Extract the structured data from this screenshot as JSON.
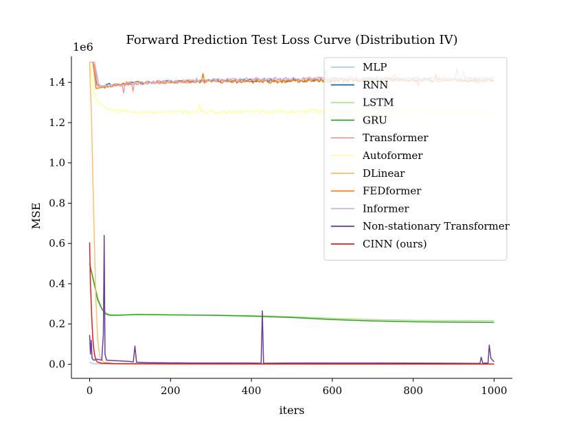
{
  "chart_data": {
    "type": "line",
    "title": "Forward Prediction Test Loss Curve (Distribution IV)",
    "xlabel": "iters",
    "ylabel": "MSE",
    "y_scale_label": "1e6",
    "xlim": [
      -45,
      1045
    ],
    "ylim": [
      -0.07,
      1.53
    ],
    "xticks": [
      0,
      200,
      400,
      600,
      800,
      1000
    ],
    "xtick_labels": [
      "0",
      "200",
      "400",
      "600",
      "800",
      "1000"
    ],
    "yticks": [
      0.0,
      0.2,
      0.4,
      0.6,
      0.8,
      1.0,
      1.2,
      1.4
    ],
    "ytick_labels": [
      "0.0",
      "0.2",
      "0.4",
      "0.6",
      "0.8",
      "1.0",
      "1.2",
      "1.4"
    ],
    "legend_position": "top-right",
    "series": [
      {
        "name": "MLP",
        "color": "#a6cee3",
        "points": [
          [
            0,
            0.012
          ],
          [
            4,
            0.005
          ],
          [
            8,
            0.003
          ],
          [
            20,
            0.002
          ],
          [
            60,
            0.001
          ],
          [
            200,
            0.001
          ],
          [
            600,
            0.001
          ],
          [
            1000,
            0.001
          ]
        ]
      },
      {
        "name": "RNN",
        "color": "#1f78b4",
        "points": [
          [
            0,
            1.5
          ],
          [
            8,
            1.5
          ],
          [
            13,
            1.47
          ],
          [
            18,
            1.39
          ],
          [
            30,
            1.38
          ],
          [
            60,
            1.39
          ],
          [
            150,
            1.4
          ],
          [
            300,
            1.41
          ],
          [
            500,
            1.41
          ],
          [
            700,
            1.415
          ],
          [
            1000,
            1.41
          ]
        ]
      },
      {
        "name": "LSTM",
        "color": "#b2df8a",
        "points": [
          [
            0,
            0.5
          ],
          [
            10,
            0.42
          ],
          [
            20,
            0.33
          ],
          [
            30,
            0.28
          ],
          [
            40,
            0.255
          ],
          [
            50,
            0.247
          ],
          [
            70,
            0.245
          ],
          [
            120,
            0.248
          ],
          [
            200,
            0.246
          ],
          [
            300,
            0.244
          ],
          [
            400,
            0.242
          ],
          [
            500,
            0.236
          ],
          [
            600,
            0.228
          ],
          [
            700,
            0.222
          ],
          [
            800,
            0.218
          ],
          [
            900,
            0.217
          ],
          [
            1000,
            0.216
          ]
        ]
      },
      {
        "name": "GRU",
        "color": "#33a02c",
        "points": [
          [
            0,
            0.5
          ],
          [
            10,
            0.41
          ],
          [
            20,
            0.32
          ],
          [
            30,
            0.275
          ],
          [
            40,
            0.25
          ],
          [
            50,
            0.243
          ],
          [
            70,
            0.243
          ],
          [
            120,
            0.247
          ],
          [
            200,
            0.245
          ],
          [
            300,
            0.243
          ],
          [
            400,
            0.239
          ],
          [
            500,
            0.232
          ],
          [
            600,
            0.222
          ],
          [
            700,
            0.215
          ],
          [
            800,
            0.211
          ],
          [
            900,
            0.209
          ],
          [
            1000,
            0.208
          ]
        ]
      },
      {
        "name": "Transformer",
        "color": "#fb9a99",
        "points": [
          [
            0,
            1.5
          ],
          [
            8,
            1.5
          ],
          [
            14,
            1.46
          ],
          [
            20,
            1.38
          ],
          [
            40,
            1.385
          ],
          [
            80,
            1.39
          ],
          [
            150,
            1.4
          ],
          [
            250,
            1.405
          ],
          [
            400,
            1.41
          ],
          [
            600,
            1.415
          ],
          [
            800,
            1.415
          ],
          [
            1000,
            1.415
          ]
        ]
      },
      {
        "name": "Autoformer",
        "color": "#ffff99",
        "points": [
          [
            0,
            1.5
          ],
          [
            5,
            1.45
          ],
          [
            10,
            1.36
          ],
          [
            15,
            1.32
          ],
          [
            25,
            1.29
          ],
          [
            40,
            1.27
          ],
          [
            60,
            1.26
          ],
          [
            100,
            1.255
          ],
          [
            200,
            1.252
          ],
          [
            400,
            1.255
          ],
          [
            600,
            1.256
          ],
          [
            800,
            1.254
          ],
          [
            1000,
            1.255
          ]
        ]
      },
      {
        "name": "DLinear",
        "color": "#fdbf6f",
        "points": [
          [
            0,
            1.5
          ],
          [
            5,
            1.2
          ],
          [
            10,
            0.75
          ],
          [
            15,
            0.35
          ],
          [
            20,
            0.12
          ],
          [
            25,
            0.04
          ],
          [
            35,
            0.01
          ],
          [
            60,
            0.004
          ],
          [
            200,
            0.002
          ],
          [
            600,
            0.001
          ],
          [
            1000,
            0.001
          ]
        ]
      },
      {
        "name": "FEDformer",
        "color": "#ff7f00",
        "points": [
          [
            0,
            1.5
          ],
          [
            8,
            1.5
          ],
          [
            12,
            1.44
          ],
          [
            16,
            1.37
          ],
          [
            30,
            1.375
          ],
          [
            60,
            1.39
          ],
          [
            150,
            1.4
          ],
          [
            300,
            1.405
          ],
          [
            500,
            1.405
          ],
          [
            700,
            1.41
          ],
          [
            1000,
            1.41
          ]
        ]
      },
      {
        "name": "Informer",
        "color": "#cab2d6",
        "points": [
          [
            0,
            1.5
          ],
          [
            12,
            1.5
          ],
          [
            18,
            1.44
          ],
          [
            24,
            1.38
          ],
          [
            40,
            1.38
          ],
          [
            80,
            1.39
          ],
          [
            150,
            1.4
          ],
          [
            300,
            1.41
          ],
          [
            500,
            1.42
          ],
          [
            700,
            1.42
          ],
          [
            1000,
            1.42
          ]
        ]
      },
      {
        "name": "Non-stationary Transformer",
        "color": "#6a3d9a",
        "points": [
          [
            0,
            0.145
          ],
          [
            2,
            0.05
          ],
          [
            4,
            0.12
          ],
          [
            6,
            0.03
          ],
          [
            10,
            0.02
          ],
          [
            20,
            0.025
          ],
          [
            30,
            0.02
          ],
          [
            34,
            0.15
          ],
          [
            36,
            0.64
          ],
          [
            38,
            0.05
          ],
          [
            42,
            0.02
          ],
          [
            60,
            0.018
          ],
          [
            90,
            0.015
          ],
          [
            108,
            0.012
          ],
          [
            112,
            0.09
          ],
          [
            116,
            0.01
          ],
          [
            150,
            0.008
          ],
          [
            250,
            0.006
          ],
          [
            400,
            0.006
          ],
          [
            424,
            0.005
          ],
          [
            427,
            0.265
          ],
          [
            430,
            0.005
          ],
          [
            500,
            0.006
          ],
          [
            700,
            0.006
          ],
          [
            900,
            0.005
          ],
          [
            965,
            0.004
          ],
          [
            968,
            0.035
          ],
          [
            972,
            0.005
          ],
          [
            985,
            0.006
          ],
          [
            988,
            0.095
          ],
          [
            992,
            0.03
          ],
          [
            1000,
            0.012
          ]
        ]
      },
      {
        "name": "CINN (ours)",
        "color": "#e31a1c",
        "points": [
          [
            0,
            0.605
          ],
          [
            2,
            0.4
          ],
          [
            4,
            0.3
          ],
          [
            6,
            0.2
          ],
          [
            8,
            0.13
          ],
          [
            10,
            0.08
          ],
          [
            13,
            0.04
          ],
          [
            16,
            0.02
          ],
          [
            20,
            0.01
          ],
          [
            30,
            0.005
          ],
          [
            60,
            0.003
          ],
          [
            200,
            0.002
          ],
          [
            600,
            0.001
          ],
          [
            1000,
            0.001
          ]
        ]
      }
    ]
  }
}
